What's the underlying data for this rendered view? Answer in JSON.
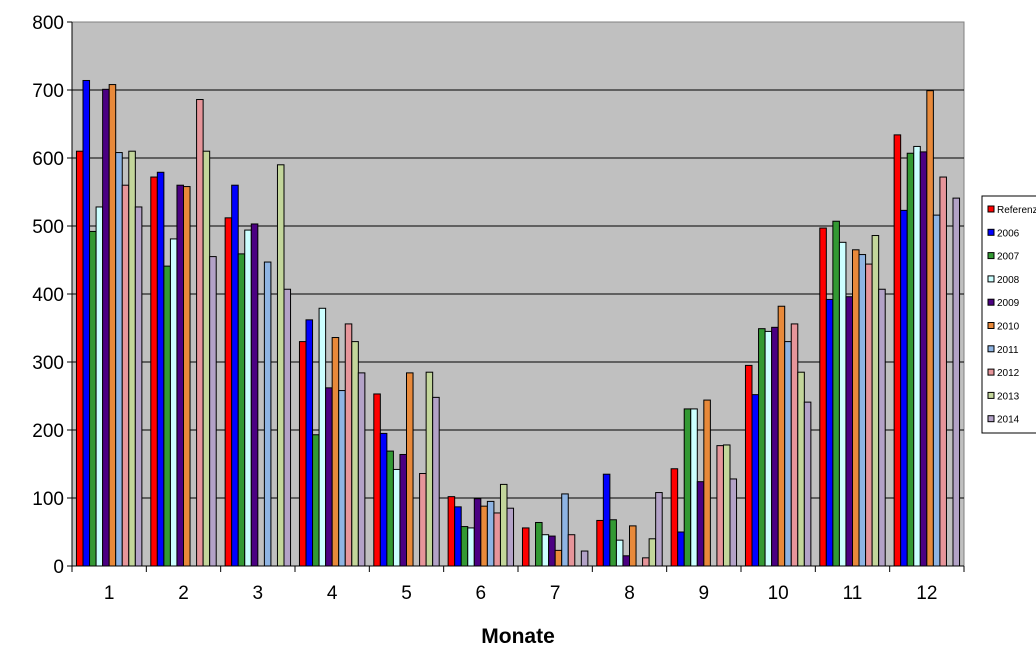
{
  "chart_data": {
    "type": "bar",
    "title": "",
    "xlabel": "Monate",
    "ylabel": "",
    "ylim": [
      0,
      800
    ],
    "yticks": [
      "0",
      "100",
      "200",
      "300",
      "400",
      "500",
      "600",
      "700",
      "800"
    ],
    "categories": [
      "1",
      "2",
      "3",
      "4",
      "5",
      "6",
      "7",
      "8",
      "9",
      "10",
      "11",
      "12"
    ],
    "grid": true,
    "legend_position": "right",
    "background_color": "#c0c0c0",
    "series": [
      {
        "name": "Referenz",
        "color": "#ff0000",
        "values": [
          610,
          572,
          512,
          330,
          253,
          102,
          56,
          67,
          143,
          295,
          497,
          634
        ]
      },
      {
        "name": "2006",
        "color": "#0000ff",
        "values": [
          714,
          579,
          560,
          362,
          195,
          87,
          0,
          135,
          50,
          252,
          392,
          523
        ]
      },
      {
        "name": "2007",
        "color": "#339933",
        "values": [
          492,
          441,
          459,
          193,
          169,
          58,
          64,
          68,
          231,
          349,
          507,
          607
        ]
      },
      {
        "name": "2008",
        "color": "#ccffff",
        "values": [
          528,
          481,
          494,
          379,
          142,
          56,
          46,
          38,
          231,
          345,
          476,
          617
        ]
      },
      {
        "name": "2009",
        "color": "#4b0082",
        "values": [
          701,
          560,
          503,
          262,
          164,
          99,
          44,
          15,
          124,
          351,
          396,
          609
        ]
      },
      {
        "name": "2010",
        "color": "#e8893a",
        "values": [
          708,
          558,
          0,
          336,
          284,
          88,
          23,
          59,
          244,
          382,
          465,
          699
        ]
      },
      {
        "name": "2011",
        "color": "#8eb4e3",
        "values": [
          608,
          0,
          447,
          258,
          0,
          95,
          106,
          0,
          0,
          330,
          458,
          516
        ]
      },
      {
        "name": "2012",
        "color": "#e6959a",
        "values": [
          560,
          686,
          0,
          356,
          136,
          78,
          46,
          12,
          177,
          356,
          444,
          572
        ]
      },
      {
        "name": "2013",
        "color": "#c3d69b",
        "values": [
          610,
          610,
          590,
          330,
          285,
          120,
          0,
          40,
          178,
          285,
          486,
          0
        ]
      },
      {
        "name": "2014",
        "color": "#b3a2c7",
        "values": [
          528,
          455,
          407,
          284,
          248,
          85,
          22,
          108,
          128,
          241,
          407,
          541
        ]
      }
    ]
  }
}
